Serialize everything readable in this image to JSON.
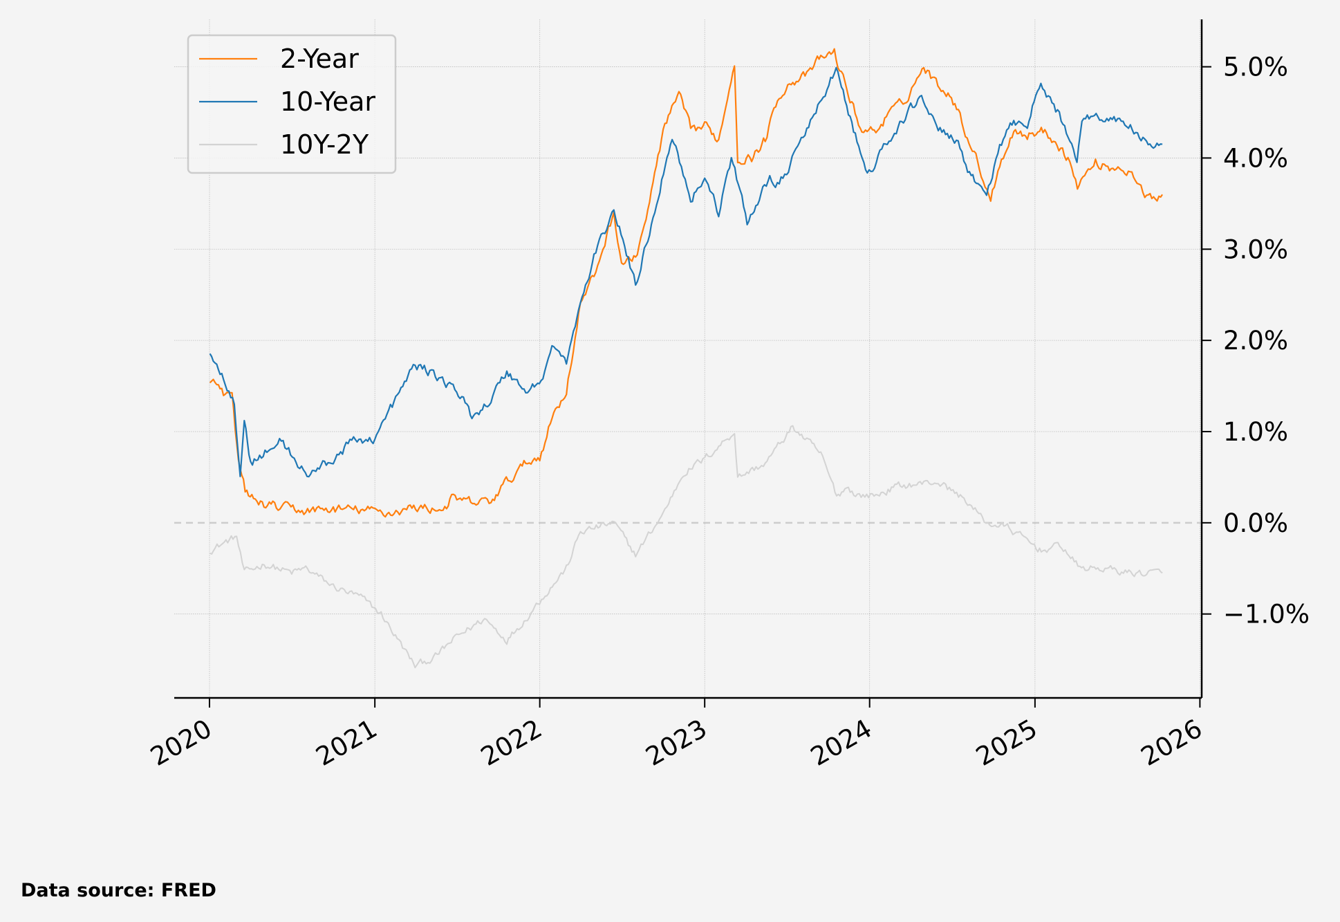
{
  "chart_data": {
    "type": "line",
    "title": "",
    "xlabel": "",
    "ylabel": "",
    "x_ticks": [
      "2020",
      "2021",
      "2022",
      "2023",
      "2024",
      "2025",
      "2026"
    ],
    "y_ticks": [
      -1.0,
      0.0,
      1.0,
      2.0,
      3.0,
      4.0,
      5.0
    ],
    "y_tick_labels": [
      "−1.0%",
      "0.0%",
      "1.0%",
      "2.0%",
      "3.0%",
      "4.0%",
      "5.0%"
    ],
    "xlim": [
      "2019-10-15",
      "2026-01-05"
    ],
    "ylim": [
      -1.92,
      5.52
    ],
    "y_axis_side": "right",
    "grid": true,
    "zero_line": "dashed",
    "legend_position": "top-left",
    "series": [
      {
        "name": "2-Year",
        "color": "#ff7f0e",
        "points": [
          [
            "2020-01-02",
            1.58
          ],
          [
            "2020-02-01",
            1.42
          ],
          [
            "2020-02-20",
            1.36
          ],
          [
            "2020-03-05",
            0.65
          ],
          [
            "2020-03-20",
            0.35
          ],
          [
            "2020-04-15",
            0.22
          ],
          [
            "2020-06-01",
            0.17
          ],
          [
            "2020-08-01",
            0.13
          ],
          [
            "2020-10-01",
            0.15
          ],
          [
            "2020-12-01",
            0.14
          ],
          [
            "2021-02-01",
            0.11
          ],
          [
            "2021-04-01",
            0.17
          ],
          [
            "2021-06-01",
            0.15
          ],
          [
            "2021-06-20",
            0.26
          ],
          [
            "2021-08-01",
            0.22
          ],
          [
            "2021-09-15",
            0.23
          ],
          [
            "2021-10-15",
            0.42
          ],
          [
            "2021-12-01",
            0.65
          ],
          [
            "2022-01-01",
            0.73
          ],
          [
            "2022-02-01",
            1.2
          ],
          [
            "2022-03-01",
            1.45
          ],
          [
            "2022-04-01",
            2.4
          ],
          [
            "2022-05-01",
            2.7
          ],
          [
            "2022-06-14",
            3.4
          ],
          [
            "2022-07-01",
            2.85
          ],
          [
            "2022-08-01",
            2.9
          ],
          [
            "2022-09-01",
            3.5
          ],
          [
            "2022-10-01",
            4.3
          ],
          [
            "2022-11-05",
            4.7
          ],
          [
            "2022-12-01",
            4.3
          ],
          [
            "2023-01-01",
            4.35
          ],
          [
            "2023-02-01",
            4.2
          ],
          [
            "2023-03-08",
            5.05
          ],
          [
            "2023-03-15",
            4.0
          ],
          [
            "2023-04-15",
            4.0
          ],
          [
            "2023-05-15",
            4.2
          ],
          [
            "2023-06-15",
            4.7
          ],
          [
            "2023-07-15",
            4.85
          ],
          [
            "2023-08-15",
            4.9
          ],
          [
            "2023-09-15",
            5.1
          ],
          [
            "2023-10-15",
            5.15
          ],
          [
            "2023-11-15",
            4.7
          ],
          [
            "2023-12-15",
            4.3
          ],
          [
            "2024-01-15",
            4.3
          ],
          [
            "2024-02-15",
            4.5
          ],
          [
            "2024-03-15",
            4.6
          ],
          [
            "2024-04-30",
            5.0
          ],
          [
            "2024-05-31",
            4.8
          ],
          [
            "2024-06-30",
            4.7
          ],
          [
            "2024-07-31",
            4.3
          ],
          [
            "2024-08-31",
            3.9
          ],
          [
            "2024-09-25",
            3.55
          ],
          [
            "2024-10-15",
            3.95
          ],
          [
            "2024-11-15",
            4.3
          ],
          [
            "2024-12-15",
            4.25
          ],
          [
            "2025-01-15",
            4.3
          ],
          [
            "2025-02-15",
            4.2
          ],
          [
            "2025-03-15",
            4.0
          ],
          [
            "2025-04-05",
            3.7
          ],
          [
            "2025-05-15",
            3.95
          ],
          [
            "2025-06-15",
            3.9
          ],
          [
            "2025-07-15",
            3.9
          ],
          [
            "2025-08-15",
            3.75
          ],
          [
            "2025-09-01",
            3.55
          ],
          [
            "2025-10-10",
            3.6
          ]
        ]
      },
      {
        "name": "10-Year",
        "color": "#1f77b4",
        "points": [
          [
            "2020-01-02",
            1.88
          ],
          [
            "2020-02-01",
            1.58
          ],
          [
            "2020-02-25",
            1.35
          ],
          [
            "2020-03-09",
            0.54
          ],
          [
            "2020-03-18",
            1.18
          ],
          [
            "2020-04-01",
            0.65
          ],
          [
            "2020-06-08",
            0.9
          ],
          [
            "2020-08-04",
            0.52
          ],
          [
            "2020-10-01",
            0.7
          ],
          [
            "2020-11-15",
            0.9
          ],
          [
            "2021-01-01",
            0.93
          ],
          [
            "2021-01-20",
            1.1
          ],
          [
            "2021-03-31",
            1.74
          ],
          [
            "2021-05-15",
            1.62
          ],
          [
            "2021-07-01",
            1.45
          ],
          [
            "2021-08-04",
            1.17
          ],
          [
            "2021-09-15",
            1.35
          ],
          [
            "2021-10-20",
            1.66
          ],
          [
            "2021-12-01",
            1.45
          ],
          [
            "2021-12-31",
            1.52
          ],
          [
            "2022-02-01",
            1.95
          ],
          [
            "2022-03-01",
            1.75
          ],
          [
            "2022-04-01",
            2.4
          ],
          [
            "2022-05-01",
            2.9
          ],
          [
            "2022-06-14",
            3.45
          ],
          [
            "2022-08-01",
            2.6
          ],
          [
            "2022-09-01",
            3.2
          ],
          [
            "2022-10-21",
            4.25
          ],
          [
            "2022-12-01",
            3.55
          ],
          [
            "2023-01-01",
            3.8
          ],
          [
            "2023-02-01",
            3.4
          ],
          [
            "2023-03-01",
            4.0
          ],
          [
            "2023-04-05",
            3.3
          ],
          [
            "2023-05-25",
            3.8
          ],
          [
            "2023-06-15",
            3.7
          ],
          [
            "2023-08-15",
            4.3
          ],
          [
            "2023-10-19",
            4.98
          ],
          [
            "2023-11-15",
            4.5
          ],
          [
            "2023-12-27",
            3.8
          ],
          [
            "2024-02-01",
            4.1
          ],
          [
            "2024-04-25",
            4.7
          ],
          [
            "2024-06-01",
            4.3
          ],
          [
            "2024-07-15",
            4.2
          ],
          [
            "2024-08-05",
            3.8
          ],
          [
            "2024-09-16",
            3.62
          ],
          [
            "2024-10-15",
            4.1
          ],
          [
            "2024-11-15",
            4.4
          ],
          [
            "2024-12-15",
            4.4
          ],
          [
            "2025-01-14",
            4.8
          ],
          [
            "2025-02-20",
            4.5
          ],
          [
            "2025-04-04",
            4.0
          ],
          [
            "2025-04-15",
            4.45
          ],
          [
            "2025-06-01",
            4.45
          ],
          [
            "2025-07-15",
            4.4
          ],
          [
            "2025-09-01",
            4.2
          ],
          [
            "2025-09-20",
            4.05
          ],
          [
            "2025-10-10",
            4.15
          ]
        ]
      },
      {
        "name": "10Y-2Y",
        "color": "#d3d3d3",
        "points": [
          [
            "2020-01-02",
            -0.3
          ],
          [
            "2020-03-01",
            -0.15
          ],
          [
            "2020-03-18",
            -0.55
          ],
          [
            "2020-05-01",
            -0.45
          ],
          [
            "2020-07-01",
            -0.55
          ],
          [
            "2020-08-01",
            -0.5
          ],
          [
            "2020-10-01",
            -0.7
          ],
          [
            "2020-12-01",
            -0.82
          ],
          [
            "2021-01-15",
            -1.0
          ],
          [
            "2021-03-31",
            -1.57
          ],
          [
            "2021-05-15",
            -1.47
          ],
          [
            "2021-07-01",
            -1.25
          ],
          [
            "2021-09-01",
            -1.05
          ],
          [
            "2021-10-20",
            -1.28
          ],
          [
            "2021-12-01",
            -1.05
          ],
          [
            "2022-01-01",
            -0.85
          ],
          [
            "2022-03-01",
            -0.5
          ],
          [
            "2022-04-01",
            -0.1
          ],
          [
            "2022-06-14",
            0.0
          ],
          [
            "2022-08-01",
            -0.35
          ],
          [
            "2022-10-01",
            0.1
          ],
          [
            "2022-11-15",
            0.55
          ],
          [
            "2023-01-01",
            0.7
          ],
          [
            "2023-03-08",
            1.0
          ],
          [
            "2023-03-15",
            0.5
          ],
          [
            "2023-05-15",
            0.65
          ],
          [
            "2023-07-15",
            1.05
          ],
          [
            "2023-09-15",
            0.75
          ],
          [
            "2023-10-20",
            0.3
          ],
          [
            "2023-11-15",
            0.4
          ],
          [
            "2023-12-01",
            0.3
          ],
          [
            "2024-01-15",
            0.3
          ],
          [
            "2024-03-01",
            0.4
          ],
          [
            "2024-06-01",
            0.45
          ],
          [
            "2024-08-01",
            0.25
          ],
          [
            "2024-09-15",
            0.0
          ],
          [
            "2024-11-01",
            -0.05
          ],
          [
            "2024-12-15",
            -0.2
          ],
          [
            "2025-01-15",
            -0.3
          ],
          [
            "2025-03-01",
            -0.25
          ],
          [
            "2025-04-10",
            -0.5
          ],
          [
            "2025-06-01",
            -0.5
          ],
          [
            "2025-08-01",
            -0.55
          ],
          [
            "2025-10-10",
            -0.55
          ]
        ]
      }
    ],
    "source_note": "Data source: FRED"
  }
}
